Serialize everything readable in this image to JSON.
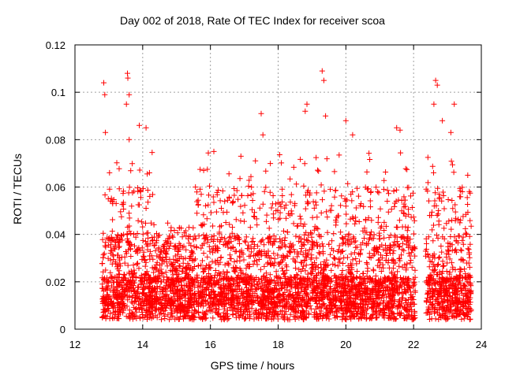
{
  "chart_data": {
    "type": "scatter",
    "title": "Day 002 of 2018, Rate Of TEC Index for receiver scoa",
    "xlabel": "GPS time / hours",
    "ylabel": "ROTI / TECUs",
    "xlim": [
      12,
      24
    ],
    "ylim": [
      0,
      0.12
    ],
    "xticks": [
      12,
      14,
      16,
      18,
      20,
      22,
      24
    ],
    "yticks": [
      0,
      0.02,
      0.04,
      0.06,
      0.08,
      0.1,
      0.12
    ],
    "ytick_labels": [
      "0",
      "0.02",
      "0.04",
      "0.06",
      "0.08",
      "0.1",
      "0.12"
    ],
    "grid": true,
    "marker": "+",
    "series": [
      {
        "name": "ROTI",
        "color": "#ff0000",
        "x_range": [
          12.8,
          23.7
        ],
        "gap": [
          22.05,
          22.35
        ],
        "density_points": 4500,
        "peaks": [
          {
            "x": 12.85,
            "y": 0.104
          },
          {
            "x": 12.88,
            "y": 0.099
          },
          {
            "x": 12.9,
            "y": 0.083
          },
          {
            "x": 13.02,
            "y": 0.066
          },
          {
            "x": 13.55,
            "y": 0.108
          },
          {
            "x": 13.56,
            "y": 0.106
          },
          {
            "x": 13.52,
            "y": 0.095
          },
          {
            "x": 13.6,
            "y": 0.099
          },
          {
            "x": 13.6,
            "y": 0.08
          },
          {
            "x": 13.9,
            "y": 0.086
          },
          {
            "x": 14.1,
            "y": 0.085
          },
          {
            "x": 14.2,
            "y": 0.066
          },
          {
            "x": 15.8,
            "y": 0.067
          },
          {
            "x": 16.1,
            "y": 0.075
          },
          {
            "x": 16.9,
            "y": 0.073
          },
          {
            "x": 17.5,
            "y": 0.091
          },
          {
            "x": 17.55,
            "y": 0.082
          },
          {
            "x": 18.85,
            "y": 0.095
          },
          {
            "x": 18.8,
            "y": 0.092
          },
          {
            "x": 19.3,
            "y": 0.109
          },
          {
            "x": 19.35,
            "y": 0.105
          },
          {
            "x": 19.4,
            "y": 0.09
          },
          {
            "x": 20.0,
            "y": 0.088
          },
          {
            "x": 20.2,
            "y": 0.082
          },
          {
            "x": 21.5,
            "y": 0.085
          },
          {
            "x": 21.6,
            "y": 0.084
          },
          {
            "x": 22.65,
            "y": 0.105
          },
          {
            "x": 22.7,
            "y": 0.103
          },
          {
            "x": 22.6,
            "y": 0.095
          },
          {
            "x": 22.85,
            "y": 0.088
          },
          {
            "x": 23.2,
            "y": 0.095
          },
          {
            "x": 23.1,
            "y": 0.083
          },
          {
            "x": 23.6,
            "y": 0.065
          }
        ]
      }
    ]
  }
}
